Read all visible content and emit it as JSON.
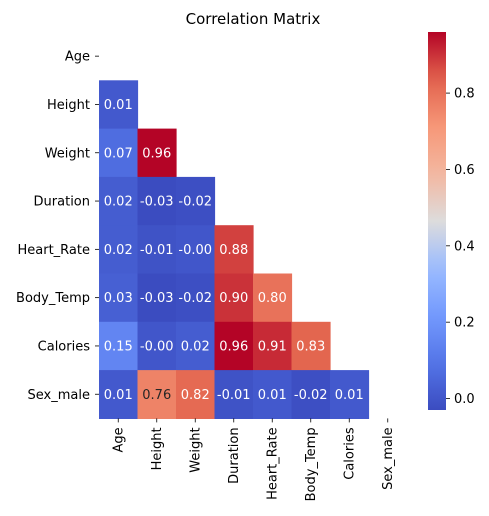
{
  "chart_data": {
    "type": "heatmap",
    "title": "Correlation Matrix",
    "xlabel": "",
    "ylabel": "",
    "colormap": "coolwarm",
    "mask": "upper-triangle-including-diagonal",
    "rows": [
      "Age",
      "Height",
      "Weight",
      "Duration",
      "Heart_Rate",
      "Body_Temp",
      "Calories",
      "Sex_male"
    ],
    "columns": [
      "Age",
      "Height",
      "Weight",
      "Duration",
      "Heart_Rate",
      "Body_Temp",
      "Calories",
      "Sex_male"
    ],
    "values": [
      [
        null,
        null,
        null,
        null,
        null,
        null,
        null,
        null
      ],
      [
        0.01,
        null,
        null,
        null,
        null,
        null,
        null,
        null
      ],
      [
        0.07,
        0.96,
        null,
        null,
        null,
        null,
        null,
        null
      ],
      [
        0.02,
        -0.03,
        -0.02,
        null,
        null,
        null,
        null,
        null
      ],
      [
        0.02,
        -0.01,
        -0.0,
        0.88,
        null,
        null,
        null,
        null
      ],
      [
        0.03,
        -0.03,
        -0.02,
        0.9,
        0.8,
        null,
        null,
        null
      ],
      [
        0.15,
        -0.0,
        0.02,
        0.96,
        0.91,
        0.83,
        null,
        null
      ],
      [
        0.01,
        0.76,
        0.82,
        -0.01,
        0.01,
        -0.02,
        0.01,
        null
      ]
    ],
    "annotations": [
      [
        null,
        null,
        null,
        null,
        null,
        null,
        null,
        null
      ],
      [
        "0.01",
        null,
        null,
        null,
        null,
        null,
        null,
        null
      ],
      [
        "0.07",
        "0.96",
        null,
        null,
        null,
        null,
        null,
        null
      ],
      [
        "0.02",
        "-0.03",
        "-0.02",
        null,
        null,
        null,
        null,
        null
      ],
      [
        "0.02",
        "-0.01",
        "-0.00",
        "0.88",
        null,
        null,
        null,
        null
      ],
      [
        "0.03",
        "-0.03",
        "-0.02",
        "0.90",
        "0.80",
        null,
        null,
        null
      ],
      [
        "0.15",
        "-0.00",
        "0.02",
        "0.96",
        "0.91",
        "0.83",
        null,
        null
      ],
      [
        "0.01",
        "0.76",
        "0.82",
        "-0.01",
        "0.01",
        "-0.02",
        "0.01",
        null
      ]
    ],
    "colorbar": {
      "vmin": -0.03,
      "vmax": 0.96,
      "ticks": [
        0.0,
        0.2,
        0.4,
        0.6,
        0.8
      ],
      "tick_labels": [
        "0.0",
        "0.2",
        "0.4",
        "0.6",
        "0.8"
      ]
    }
  }
}
